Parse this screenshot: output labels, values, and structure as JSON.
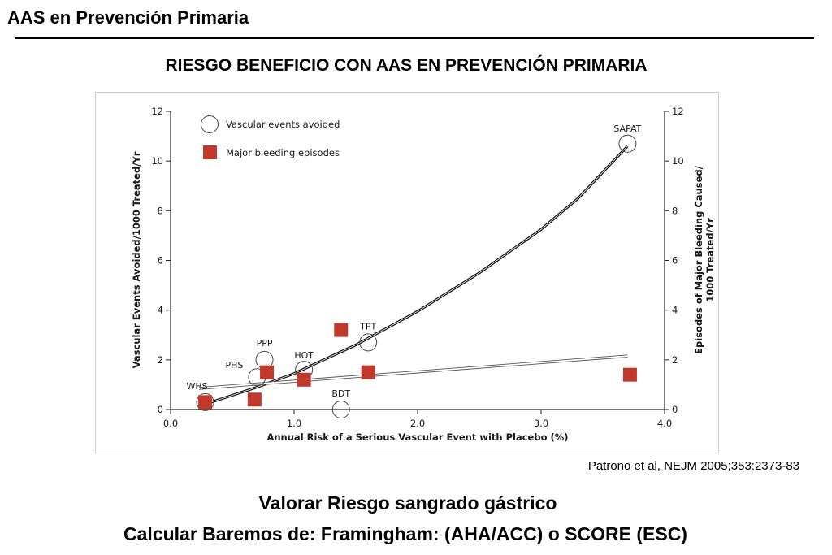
{
  "slide": {
    "header": "AAS en Prevención Primaria",
    "chart_heading": "RIESGO BENEFICIO CON AAS EN PREVENCIÓN PRIMARIA",
    "citation": "Patrono et al, NEJM 2005;353:2373-83",
    "footer_line1": "Valorar Riesgo sangrado gástrico",
    "footer_line2": "Calcular Baremos de:  Framingham:  (AHA/ACC) o  SCORE (ESC)"
  },
  "chart_data": {
    "type": "scatter",
    "xlabel": "Annual Risk of a Serious Vascular Event with Placebo (%)",
    "ylabel_left": "Vascular Events Avoided/1000 Treated/Yr",
    "ylabel_right_line1": "Episodes of Major Bleeding Caused/",
    "ylabel_right_line2": "1000 Treated/Yr",
    "xlim": [
      0,
      4
    ],
    "ylim": [
      0,
      12
    ],
    "x_ticks": [
      "0.0",
      "1.0",
      "2.0",
      "3.0",
      "4.0"
    ],
    "y_ticks": [
      "0",
      "2",
      "4",
      "6",
      "8",
      "10",
      "12"
    ],
    "legend_position": "top-left",
    "legend": {
      "avoided": "Vascular events avoided",
      "bleeding": "Major bleeding episodes"
    },
    "bleeding_color": "#c0392b",
    "series": [
      {
        "name": "Vascular events avoided",
        "marker": "open-circle",
        "points": [
          {
            "label": "WHS",
            "x": 0.28,
            "y": 0.3
          },
          {
            "label": "PHS",
            "x": 0.7,
            "y": 1.3
          },
          {
            "label": "PPP",
            "x": 0.76,
            "y": 2.0
          },
          {
            "label": "HOT",
            "x": 1.08,
            "y": 1.6
          },
          {
            "label": "BDT",
            "x": 1.38,
            "y": 0.0
          },
          {
            "label": "TPT",
            "x": 1.6,
            "y": 2.7
          },
          {
            "label": "SAPAT",
            "x": 3.7,
            "y": 10.7
          }
        ]
      },
      {
        "name": "Major bleeding episodes",
        "marker": "filled-square",
        "points": [
          {
            "x": 0.28,
            "y": 0.3
          },
          {
            "x": 0.68,
            "y": 0.4
          },
          {
            "x": 0.78,
            "y": 1.5
          },
          {
            "x": 1.08,
            "y": 1.2
          },
          {
            "x": 1.38,
            "y": 3.2
          },
          {
            "x": 1.6,
            "y": 1.5
          },
          {
            "x": 3.72,
            "y": 1.4
          }
        ]
      }
    ],
    "trend_avoided": [
      [
        0.3,
        0.25
      ],
      [
        0.7,
        0.9
      ],
      [
        1.0,
        1.45
      ],
      [
        1.5,
        2.6
      ],
      [
        2.0,
        3.95
      ],
      [
        2.5,
        5.5
      ],
      [
        3.0,
        7.25
      ],
      [
        3.3,
        8.5
      ],
      [
        3.7,
        10.6
      ]
    ],
    "trend_bleeding": [
      [
        0.23,
        0.85
      ],
      [
        3.7,
        2.15
      ]
    ]
  }
}
